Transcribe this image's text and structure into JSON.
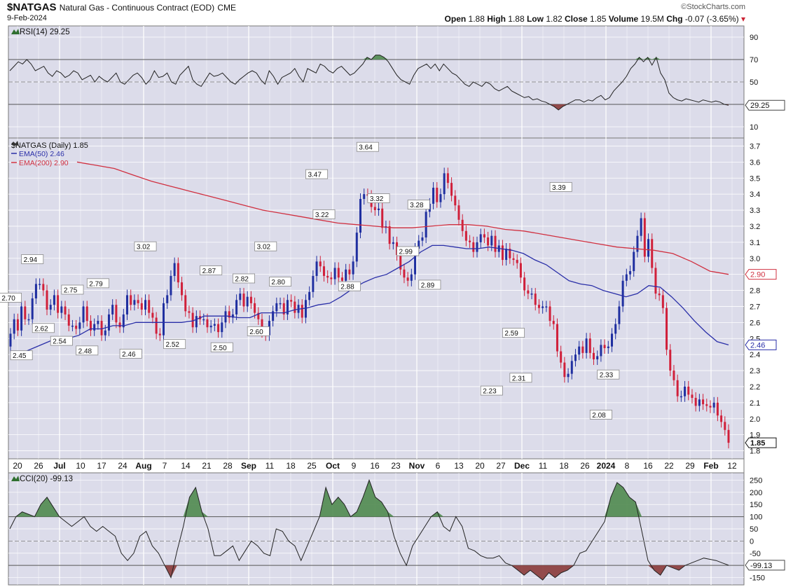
{
  "header": {
    "symbol": "$NATGAS",
    "name": "Natural Gas - Continuous Contract (EOD)",
    "exchange": "CME",
    "date": "9-Feb-2024",
    "source": "©StockCharts.com",
    "open_label": "Open",
    "open": "1.88",
    "high_label": "High",
    "high": "1.88",
    "low_label": "Low",
    "low": "1.82",
    "close_label": "Close",
    "close": "1.85",
    "volume_label": "Volume",
    "volume": "19.5M",
    "chg_label": "Chg",
    "chg": "-0.07 (-3.65%)"
  },
  "colors": {
    "panel_bg": "#dcdcea",
    "grid": "#ffffff",
    "up_candle": "#1f2fa0",
    "down_candle": "#d0203a",
    "ema50": "#2a2fa8",
    "ema200": "#d03040",
    "overbought_fill": "#4f8a4f",
    "oversold_fill": "#8a3a3a"
  },
  "chart_data": [
    {
      "type": "line",
      "name": "rsi-panel",
      "title": "RSI(14) 29.25",
      "ylim": [
        0,
        100
      ],
      "y_ticks": [
        10,
        30,
        50,
        70,
        90
      ],
      "reference_lines": [
        30,
        50,
        70
      ],
      "last_value_label": "29.25",
      "series": [
        {
          "values": [
            60,
            64,
            68,
            66,
            70,
            66,
            60,
            62,
            64,
            58,
            55,
            60,
            58,
            54,
            56,
            60,
            58,
            52,
            54,
            56,
            50,
            55,
            52,
            50,
            54,
            58,
            50,
            48,
            52,
            56,
            58,
            54,
            48,
            52,
            60,
            54,
            55,
            58,
            50,
            48,
            56,
            60,
            64,
            52,
            48,
            46,
            52,
            58,
            55,
            56,
            58,
            54,
            50,
            48,
            52,
            55,
            58,
            60,
            58,
            52,
            48,
            60,
            55,
            48,
            54,
            56,
            58,
            62,
            55,
            50,
            62,
            60,
            58,
            66,
            64,
            60,
            58,
            62,
            64,
            60,
            56,
            58,
            62,
            66,
            72,
            70,
            74,
            74,
            72,
            68,
            62,
            56,
            52,
            50,
            48,
            56,
            62,
            64,
            66,
            62,
            66,
            60,
            66,
            62,
            58,
            56,
            52,
            48,
            46,
            50,
            48,
            46,
            50,
            48,
            44,
            42,
            44,
            46,
            42,
            40,
            38,
            36,
            37,
            34,
            35,
            33,
            32,
            30,
            28,
            25,
            28,
            30,
            32,
            34,
            34,
            32,
            34,
            33,
            36,
            38,
            34,
            36,
            42,
            46,
            50,
            55,
            62,
            66,
            72,
            68,
            72,
            65,
            72,
            58,
            52,
            40,
            36,
            34,
            33,
            35,
            34,
            33,
            32,
            34,
            33,
            32,
            33,
            32,
            30,
            29.25
          ]
        }
      ]
    },
    {
      "type": "candlestick",
      "name": "price-panel",
      "title": "$NATGAS (Daily) 1.85",
      "ylim": [
        1.75,
        3.75
      ],
      "y_ticks": [
        1.8,
        1.9,
        2.0,
        2.1,
        2.2,
        2.3,
        2.4,
        2.5,
        2.6,
        2.7,
        2.8,
        2.9,
        3.0,
        3.1,
        3.2,
        3.3,
        3.4,
        3.5,
        3.6,
        3.7
      ],
      "x_tick_labels": [
        "20",
        "26",
        "Jul",
        "10",
        "17",
        "24",
        "Aug",
        "7",
        "14",
        "21",
        "28",
        "Sep",
        "11",
        "18",
        "25",
        "Oct",
        "9",
        "16",
        "23",
        "Nov",
        "6",
        "13",
        "20",
        "27",
        "Dec",
        "11",
        "18",
        "26",
        "2024",
        "8",
        "16",
        "22",
        "29",
        "Feb",
        "12"
      ],
      "close": [
        2.53,
        2.62,
        2.55,
        2.7,
        2.62,
        2.62,
        2.75,
        2.84,
        2.84,
        2.8,
        2.68,
        2.71,
        2.77,
        2.66,
        2.7,
        2.65,
        2.58,
        2.58,
        2.56,
        2.6,
        2.7,
        2.61,
        2.55,
        2.59,
        2.61,
        2.52,
        2.55,
        2.65,
        2.71,
        2.6,
        2.57,
        2.65,
        2.77,
        2.71,
        2.74,
        2.72,
        2.68,
        2.74,
        2.66,
        2.63,
        2.53,
        2.52,
        2.72,
        2.77,
        2.89,
        2.97,
        2.85,
        2.77,
        2.67,
        2.66,
        2.57,
        2.64,
        2.62,
        2.62,
        2.57,
        2.58,
        2.59,
        2.54,
        2.6,
        2.67,
        2.63,
        2.65,
        2.74,
        2.78,
        2.7,
        2.76,
        2.72,
        2.66,
        2.62,
        2.54,
        2.52,
        2.61,
        2.67,
        2.72,
        2.72,
        2.65,
        2.74,
        2.73,
        2.66,
        2.71,
        2.63,
        2.74,
        2.79,
        2.89,
        2.98,
        2.95,
        2.89,
        2.88,
        2.87,
        2.94,
        2.88,
        2.86,
        2.93,
        2.9,
        2.98,
        3.16,
        3.37,
        3.4,
        3.39,
        3.32,
        3.3,
        3.31,
        3.19,
        3.2,
        3.09,
        3.1,
        3.02,
        2.93,
        2.88,
        2.86,
        2.9,
        3.06,
        3.11,
        3.13,
        3.29,
        3.34,
        3.44,
        3.35,
        3.4,
        3.53,
        3.47,
        3.39,
        3.33,
        3.24,
        3.17,
        3.11,
        3.1,
        3.04,
        3.1,
        3.15,
        3.13,
        3.08,
        3.14,
        3.04,
        3.08,
        2.99,
        3.06,
        3.0,
        2.99,
        2.97,
        2.88,
        2.8,
        2.78,
        2.78,
        2.71,
        2.69,
        2.7,
        2.7,
        2.61,
        2.59,
        2.42,
        2.35,
        2.26,
        2.28,
        2.36,
        2.4,
        2.45,
        2.41,
        2.5,
        2.41,
        2.37,
        2.39,
        2.46,
        2.44,
        2.45,
        2.53,
        2.59,
        2.7,
        2.86,
        2.9,
        2.92,
        3.04,
        3.14,
        3.25,
        3.01,
        3.12,
        2.94,
        2.78,
        2.77,
        2.69,
        2.43,
        2.3,
        2.24,
        2.14,
        2.14,
        2.2,
        2.15,
        2.13,
        2.08,
        2.12,
        2.09,
        2.08,
        2.07,
        2.1,
        2.02,
        1.98,
        1.93,
        1.85
      ],
      "ema_lines": [
        {
          "name": "EMA(50) 2.46",
          "values": [
            2.37,
            2.41,
            2.44,
            2.47,
            2.5,
            2.5,
            2.52,
            2.56,
            2.56,
            2.58,
            2.58,
            2.6,
            2.6,
            2.6,
            2.6,
            2.6,
            2.61,
            2.64,
            2.64,
            2.64,
            2.63,
            2.63,
            2.66,
            2.66,
            2.66,
            2.68,
            2.69,
            2.71,
            2.72,
            2.76,
            2.81,
            2.85,
            2.88,
            2.9,
            2.94,
            2.98,
            3.04,
            3.08,
            3.08,
            3.07,
            3.06,
            3.06,
            3.07,
            3.06,
            3.05,
            3.03,
            2.99,
            2.96,
            2.91,
            2.86,
            2.84,
            2.83,
            2.8,
            2.78,
            2.76,
            2.78,
            2.83,
            2.82,
            2.76,
            2.69,
            2.61,
            2.54,
            2.48,
            2.46
          ]
        },
        {
          "name": "EMA(200) 2.90",
          "values": [
            3.6,
            3.58,
            3.56,
            3.52,
            3.48,
            3.45,
            3.42,
            3.39,
            3.36,
            3.33,
            3.3,
            3.28,
            3.26,
            3.24,
            3.22,
            3.21,
            3.2,
            3.19,
            3.19,
            3.2,
            3.21,
            3.21,
            3.2,
            3.18,
            3.17,
            3.15,
            3.13,
            3.11,
            3.09,
            3.07,
            3.06,
            3.05,
            3.03,
            2.98,
            2.92,
            2.9
          ]
        }
      ],
      "annotations": [
        {
          "text": "2.70",
          "x": 0,
          "y": 2.7
        },
        {
          "text": "2.45",
          "x": 3,
          "y": 2.45
        },
        {
          "text": "2.94",
          "x": 6,
          "y": 2.94
        },
        {
          "text": "2.62",
          "x": 9,
          "y": 2.62
        },
        {
          "text": "2.54",
          "x": 14,
          "y": 2.54
        },
        {
          "text": "2.75",
          "x": 17,
          "y": 2.75
        },
        {
          "text": "2.48",
          "x": 21,
          "y": 2.48
        },
        {
          "text": "2.79",
          "x": 24,
          "y": 2.79
        },
        {
          "text": "2.46",
          "x": 33,
          "y": 2.46
        },
        {
          "text": "3.02",
          "x": 37,
          "y": 3.02
        },
        {
          "text": "2.52",
          "x": 45,
          "y": 2.52
        },
        {
          "text": "2.87",
          "x": 55,
          "y": 2.87
        },
        {
          "text": "2.50",
          "x": 58,
          "y": 2.5
        },
        {
          "text": "2.82",
          "x": 64,
          "y": 2.82
        },
        {
          "text": "2.60",
          "x": 68,
          "y": 2.6
        },
        {
          "text": "3.02",
          "x": 70,
          "y": 3.02
        },
        {
          "text": "2.80",
          "x": 74,
          "y": 2.8
        },
        {
          "text": "3.47",
          "x": 84,
          "y": 3.47
        },
        {
          "text": "3.22",
          "x": 86,
          "y": 3.22
        },
        {
          "text": "2.88",
          "x": 93,
          "y": 2.88
        },
        {
          "text": "3.64",
          "x": 98,
          "y": 3.64
        },
        {
          "text": "3.32",
          "x": 101,
          "y": 3.32
        },
        {
          "text": "2.99",
          "x": 109,
          "y": 2.99
        },
        {
          "text": "3.28",
          "x": 112,
          "y": 3.28
        },
        {
          "text": "2.89",
          "x": 115,
          "y": 2.89
        },
        {
          "text": "2.23",
          "x": 132,
          "y": 2.23
        },
        {
          "text": "2.59",
          "x": 138,
          "y": 2.59
        },
        {
          "text": "2.31",
          "x": 140,
          "y": 2.31
        },
        {
          "text": "3.39",
          "x": 151,
          "y": 3.39
        },
        {
          "text": "2.08",
          "x": 162,
          "y": 2.08
        },
        {
          "text": "2.33",
          "x": 164,
          "y": 2.33
        }
      ],
      "last_close_label": "1.85",
      "ema50_label": "2.46",
      "ema200_label": "2.90"
    },
    {
      "type": "line",
      "name": "cci-panel",
      "title": "CCI(20) -99.13",
      "ylim": [
        -180,
        280
      ],
      "y_ticks": [
        -150,
        -100,
        -50,
        0,
        50,
        100,
        150,
        200,
        250
      ],
      "reference_lines": [
        -100,
        0,
        100
      ],
      "last_value_label": "-99.13",
      "series": [
        {
          "values": [
            50,
            100,
            120,
            110,
            100,
            150,
            180,
            140,
            100,
            80,
            60,
            80,
            100,
            60,
            40,
            60,
            40,
            20,
            -50,
            -80,
            -50,
            20,
            40,
            -20,
            -50,
            -100,
            -150,
            -40,
            60,
            180,
            220,
            120,
            50,
            -60,
            -60,
            -40,
            -20,
            -80,
            -40,
            0,
            -20,
            -50,
            -60,
            50,
            40,
            0,
            -20,
            -80,
            -20,
            40,
            100,
            220,
            150,
            180,
            150,
            100,
            120,
            180,
            250,
            180,
            160,
            120,
            20,
            -50,
            -100,
            -20,
            20,
            60,
            100,
            120,
            60,
            40,
            100,
            60,
            -30,
            -40,
            -60,
            -70,
            -70,
            -60,
            -90,
            -100,
            -120,
            -140,
            -120,
            -140,
            -160,
            -130,
            -150,
            -130,
            -120,
            -100,
            -50,
            -40,
            0,
            40,
            80,
            180,
            240,
            220,
            180,
            160,
            40,
            -80,
            -120,
            -140,
            -100,
            -110,
            -120,
            -100,
            -90,
            -80,
            -70,
            -75,
            -80,
            -90,
            -99.13
          ]
        }
      ]
    }
  ]
}
